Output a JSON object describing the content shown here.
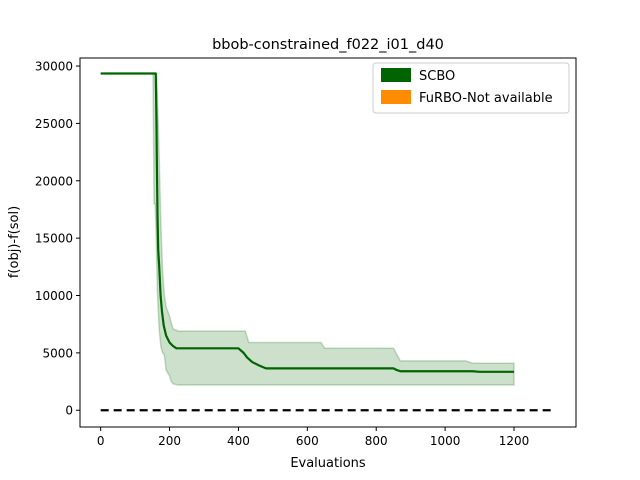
{
  "chart_data": {
    "type": "line",
    "title": "bbob-constrained_f022_i01_d40",
    "xlabel": "Evaluations",
    "ylabel": "f(obj)-f(sol)",
    "xlim": [
      -60,
      1380
    ],
    "ylim": [
      -1460,
      30700
    ],
    "xticks": [
      0,
      200,
      400,
      600,
      800,
      1000,
      1200
    ],
    "yticks": [
      0,
      5000,
      10000,
      15000,
      20000,
      25000,
      30000
    ],
    "grid": false,
    "legend_position": "top-right",
    "legend": [
      {
        "label": "SCBO",
        "color": "#006400"
      },
      {
        "label": "FuRBO-Not available",
        "color": "#ff8c00"
      }
    ],
    "series": [
      {
        "name": "SCBO",
        "color": "#006400",
        "x": [
          0,
          160,
          162,
          163,
          165,
          167,
          170,
          174,
          178,
          183,
          190,
          200,
          210,
          220,
          240,
          300,
          400,
          415,
          425,
          440,
          460,
          480,
          600,
          700,
          850,
          860,
          870,
          900,
          1000,
          1080,
          1100,
          1200
        ],
        "y": [
          29350,
          29350,
          25000,
          22000,
          17000,
          14000,
          12500,
          10000,
          8600,
          7400,
          6500,
          5900,
          5600,
          5400,
          5400,
          5400,
          5400,
          5000,
          4600,
          4200,
          3900,
          3650,
          3650,
          3650,
          3650,
          3500,
          3400,
          3400,
          3400,
          3400,
          3350,
          3350
        ]
      }
    ],
    "band": {
      "color": "#006400",
      "x": [
        0,
        152,
        155,
        158,
        160,
        162,
        165,
        170,
        175,
        180,
        185,
        190,
        200,
        205,
        210,
        225,
        230,
        240,
        300,
        400,
        420,
        430,
        480,
        600,
        640,
        650,
        700,
        830,
        850,
        870,
        900,
        1000,
        1060,
        1080,
        1200
      ],
      "upper": [
        29350,
        29350,
        29350,
        29350,
        29350,
        29350,
        27000,
        22000,
        16000,
        12000,
        10000,
        9000,
        8200,
        7600,
        7100,
        6900,
        6900,
        6900,
        6900,
        6900,
        6900,
        5900,
        5900,
        5900,
        5900,
        5400,
        5400,
        5400,
        5400,
        4300,
        4300,
        4300,
        4300,
        4100,
        4100
      ],
      "lower": [
        29350,
        29350,
        18000,
        18000,
        16500,
        14000,
        10000,
        7000,
        5500,
        5000,
        4800,
        3500,
        3000,
        2500,
        2300,
        2200,
        2200,
        2200,
        2200,
        2200,
        2200,
        2200,
        2200,
        2200,
        2200,
        2200,
        2200,
        2200,
        2200,
        2200,
        2200,
        2200,
        2200,
        2200,
        2200
      ]
    },
    "reference_line": {
      "style": "dashed",
      "color": "#000000",
      "y": 0,
      "x": [
        0,
        1320
      ]
    }
  }
}
